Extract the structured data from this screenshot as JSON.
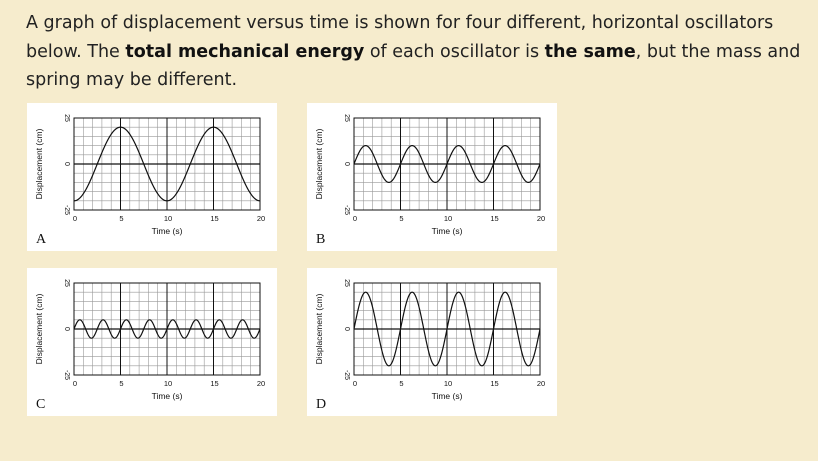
{
  "question": {
    "part1": "A graph of displacement versus time is shown for four different, horizontal oscillators below. The ",
    "bold1": "total mechanical energy",
    "part2": " of each oscillator is ",
    "bold2": "the same",
    "part3": ", but the mass and spring may be different."
  },
  "chart_data": [
    {
      "type": "line",
      "panel_label": "A",
      "xlabel": "Time (s)",
      "ylabel": "Displacement (cm)",
      "xlim": [
        0,
        20
      ],
      "ylim": [
        -25,
        25
      ],
      "x_ticks": [
        0,
        5,
        10,
        15,
        20
      ],
      "y_ticks": [
        -25,
        0,
        25
      ],
      "grid": true,
      "series": [
        {
          "amplitude": 20,
          "period": 10,
          "function": "-20*cos(2*pi*t/10)"
        }
      ]
    },
    {
      "type": "line",
      "panel_label": "B",
      "xlabel": "Time (s)",
      "ylabel": "Displacement (cm)",
      "xlim": [
        0,
        20
      ],
      "ylim": [
        -25,
        25
      ],
      "x_ticks": [
        0,
        5,
        10,
        15,
        20
      ],
      "y_ticks": [
        -25,
        0,
        25
      ],
      "grid": true,
      "series": [
        {
          "amplitude": 10,
          "period": 5,
          "function": "10*sin(2*pi*t/5)"
        }
      ]
    },
    {
      "type": "line",
      "panel_label": "C",
      "xlabel": "Time (s)",
      "ylabel": "Displacement (cm)",
      "xlim": [
        0,
        20
      ],
      "ylim": [
        -25,
        25
      ],
      "x_ticks": [
        0,
        5,
        10,
        15,
        20
      ],
      "y_ticks": [
        -25,
        0,
        25
      ],
      "grid": true,
      "series": [
        {
          "amplitude": 5,
          "period": 2.5,
          "function": "5*sin(2*pi*t/2.5)"
        }
      ]
    },
    {
      "type": "line",
      "panel_label": "D",
      "xlabel": "Time (s)",
      "ylabel": "Displacement (cm)",
      "xlim": [
        0,
        20
      ],
      "ylim": [
        -25,
        25
      ],
      "x_ticks": [
        0,
        5,
        10,
        15,
        20
      ],
      "y_ticks": [
        -25,
        0,
        25
      ],
      "grid": true,
      "series": [
        {
          "amplitude": 20,
          "period": 5,
          "function": "20*sin(2*pi*t/5)"
        }
      ]
    }
  ]
}
